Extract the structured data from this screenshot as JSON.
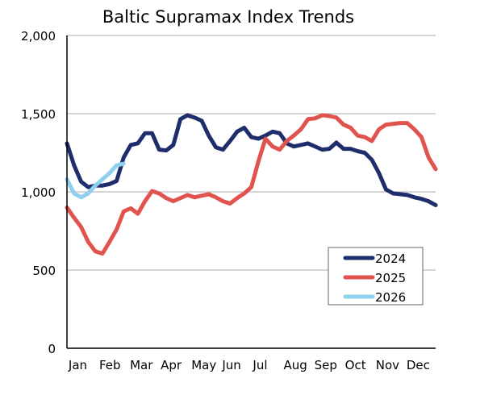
{
  "chart_data": {
    "type": "line",
    "title": "Baltic Supramax Index Trends",
    "xlabel": "",
    "ylabel": "",
    "x_unit": "week of year",
    "x_ticks": [
      "Jan",
      "Feb",
      "Mar",
      "Apr",
      "May",
      "Jun",
      "Jul",
      "Aug",
      "Sep",
      "Oct",
      "Nov",
      "Dec"
    ],
    "y_ticks": [
      "0",
      "500",
      "1,000",
      "1,500",
      "2,000"
    ],
    "ylim": [
      0,
      2000
    ],
    "xlim": [
      0,
      52
    ],
    "grid": "horizontal",
    "legend": "bottom-right",
    "series": [
      {
        "name": "2024",
        "color": "#1f2d6b",
        "values": [
          1310,
          1170,
          1065,
          1030,
          1040,
          1040,
          1050,
          1070,
          1220,
          1300,
          1310,
          1375,
          1375,
          1270,
          1265,
          1300,
          1465,
          1490,
          1475,
          1455,
          1360,
          1285,
          1270,
          1325,
          1385,
          1410,
          1350,
          1340,
          1360,
          1385,
          1375,
          1310,
          1290,
          1300,
          1310,
          1290,
          1270,
          1275,
          1315,
          1275,
          1275,
          1260,
          1250,
          1205,
          1120,
          1015,
          990,
          985,
          980,
          965,
          955,
          940,
          915
        ]
      },
      {
        "name": "2025",
        "color": "#e0534f",
        "values": [
          900,
          835,
          775,
          680,
          620,
          605,
          680,
          760,
          875,
          895,
          860,
          940,
          1005,
          990,
          960,
          940,
          960,
          980,
          965,
          975,
          985,
          965,
          940,
          925,
          960,
          990,
          1030,
          1195,
          1340,
          1290,
          1270,
          1325,
          1360,
          1400,
          1465,
          1470,
          1490,
          1485,
          1475,
          1430,
          1410,
          1360,
          1350,
          1325,
          1400,
          1430,
          1435,
          1440,
          1440,
          1400,
          1350,
          1220,
          1145
        ]
      },
      {
        "name": "2026",
        "color": "#8fd0ee",
        "values": [
          1080,
          990,
          965,
          990,
          1040,
          1080,
          1120,
          1170,
          1180
        ]
      }
    ]
  }
}
